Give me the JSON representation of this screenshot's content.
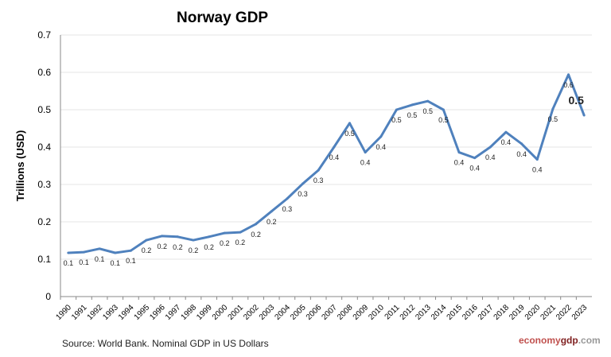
{
  "chart_data": {
    "type": "line",
    "title": "Norway GDP",
    "ylabel": "Trillions (USD)",
    "xlabel": "",
    "ylim": [
      0,
      0.7
    ],
    "yticks": [
      "0",
      "0.1",
      "0.2",
      "0.3",
      "0.4",
      "0.5",
      "0.6",
      "0.7"
    ],
    "grid": true,
    "line_color": "#4f81bd",
    "categories": [
      "1990",
      "1991",
      "1992",
      "1993",
      "1994",
      "1995",
      "1996",
      "1997",
      "1998",
      "1999",
      "2000",
      "2001",
      "2002",
      "2003",
      "2004",
      "2005",
      "2006",
      "2007",
      "2008",
      "2009",
      "2010",
      "2011",
      "2012",
      "2013",
      "2014",
      "2015",
      "2016",
      "2017",
      "2018",
      "2019",
      "2020",
      "2021",
      "2022",
      "2023"
    ],
    "values": [
      0.117,
      0.119,
      0.128,
      0.117,
      0.123,
      0.151,
      0.162,
      0.16,
      0.151,
      0.16,
      0.17,
      0.172,
      0.194,
      0.228,
      0.262,
      0.302,
      0.338,
      0.4,
      0.464,
      0.386,
      0.428,
      0.5,
      0.513,
      0.523,
      0.5,
      0.386,
      0.371,
      0.4,
      0.44,
      0.409,
      0.367,
      0.502,
      0.594,
      0.485
    ],
    "data_labels": [
      "0.1",
      "0.1",
      "0.1",
      "0.1",
      "0.1",
      "0.2",
      "0.2",
      "0.2",
      "0.2",
      "0.2",
      "0.2",
      "0.2",
      "0.2",
      "0.2",
      "0.3",
      "0.3",
      "0.3",
      "0.4",
      "0.5",
      "0.4",
      "0.4",
      "0.5",
      "0.5",
      "0.5",
      "0.5",
      "0.4",
      "0.4",
      "0.4",
      "0.4",
      "0.4",
      "0.4",
      "0.5",
      "0.6",
      "0.5"
    ]
  },
  "footer": {
    "source": "Source: World Bank.  Nominal GDP  in US Dollars",
    "brand_a": "economy",
    "brand_b": "gdp",
    "brand_c": ".com"
  }
}
